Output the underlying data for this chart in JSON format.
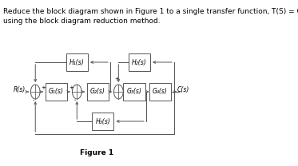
{
  "title_line1": "Reduce the block diagram shown in Figure 1 to a single transfer function, T(S) = C(s) / R(s),",
  "title_line2": "using the block diagram reduction method.",
  "figure_label": "Figure 1",
  "bg_color": "#ffffff",
  "line_color": "#555555",
  "G1_label": "G₁(s)",
  "G2_label": "G₂(s)",
  "G3_label": "G₃(s)",
  "G4_label": "G₄(s)",
  "H1_label": "H₁(s)",
  "H2_label": "H₂(s)",
  "H3_label": "H₃(s)",
  "R_label": "R(s)",
  "C_label": "C(s)",
  "font_size_title": 6.5,
  "font_size_label": 5.5,
  "font_size_block": 5.5,
  "font_size_figure": 6.5,
  "font_size_sign": 5.0
}
